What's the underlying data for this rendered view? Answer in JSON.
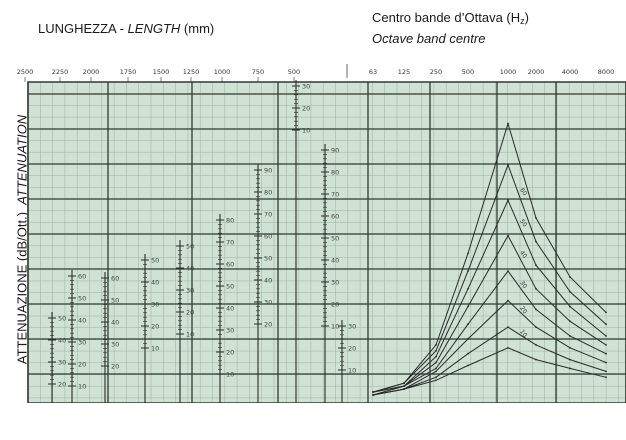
{
  "header": {
    "left_label": "LUNGHEZZA - ",
    "left_label_italic": "LENGTH",
    "left_unit": " (mm)",
    "right_line1_pre": "Centro bande d’Ottava (H",
    "right_line1_sub": "z",
    "right_line1_post": ")",
    "right_line2": "Octave band centre"
  },
  "ylabel": {
    "main": "ATTENUAZIONE (dB/Ott.)",
    "italic": "ATTENUATION"
  },
  "chart_data": {
    "type": "line",
    "length_ticks": [
      "2500",
      "2250",
      "2000",
      "1750",
      "1500",
      "1250",
      "1000",
      "750",
      "500"
    ],
    "frequency_ticks": [
      "63",
      "125",
      "250",
      "500",
      "1000",
      "2000",
      "4000",
      "8000"
    ],
    "scale_labels": [
      {
        "col": 0,
        "labels": [
          "50",
          "40",
          "30",
          "20"
        ]
      },
      {
        "col": 1,
        "labels": [
          "60",
          "50",
          "40",
          "30",
          "20",
          "10"
        ]
      },
      {
        "col": 2,
        "labels": [
          "60",
          "50",
          "40",
          "30",
          "20"
        ]
      },
      {
        "col": 3,
        "labels": [
          "50",
          "40",
          "30",
          "20",
          "10"
        ]
      },
      {
        "col": 4,
        "labels": [
          "50",
          "40",
          "30",
          "20",
          "10"
        ]
      },
      {
        "col": 5,
        "labels": [
          "80",
          "70",
          "60",
          "50",
          "40",
          "30",
          "20",
          "10"
        ]
      },
      {
        "col": 6,
        "labels": [
          "90",
          "80",
          "70",
          "60",
          "50",
          "40",
          "30",
          "20"
        ]
      },
      {
        "col": 7,
        "labels": [
          "30",
          "20",
          "10"
        ]
      },
      {
        "col": 8,
        "labels": [
          "90",
          "80",
          "70",
          "60",
          "50",
          "40",
          "30",
          "20",
          "10"
        ]
      },
      {
        "col": 9,
        "labels": [
          "30",
          "20",
          "10"
        ]
      }
    ],
    "curve_labels": [
      "60",
      "50",
      "40",
      "30",
      "20",
      "10"
    ],
    "series": [
      {
        "values": [
          1,
          4,
          17,
          48,
          92,
          60,
          40,
          28
        ]
      },
      {
        "values": [
          1,
          4,
          15,
          42,
          78,
          52,
          35,
          24
        ]
      },
      {
        "values": [
          1,
          3,
          13,
          36,
          66,
          44,
          30,
          20
        ]
      },
      {
        "values": [
          1,
          3,
          11,
          30,
          54,
          36,
          25,
          17
        ]
      },
      {
        "values": [
          0,
          3,
          9,
          24,
          42,
          29,
          20,
          14
        ]
      },
      {
        "values": [
          0,
          2,
          8,
          19,
          32,
          23,
          16,
          11
        ]
      },
      {
        "values": [
          0,
          2,
          6,
          14,
          23,
          17,
          12,
          8
        ]
      },
      {
        "values": [
          0,
          2,
          5,
          10,
          16,
          12,
          9,
          6
        ]
      }
    ],
    "ylim": [
      0,
      100
    ],
    "grid": true,
    "colors": {
      "background": "#cfe2d3",
      "grid": "#2f3b33",
      "curve": "#2b2b2b"
    }
  }
}
